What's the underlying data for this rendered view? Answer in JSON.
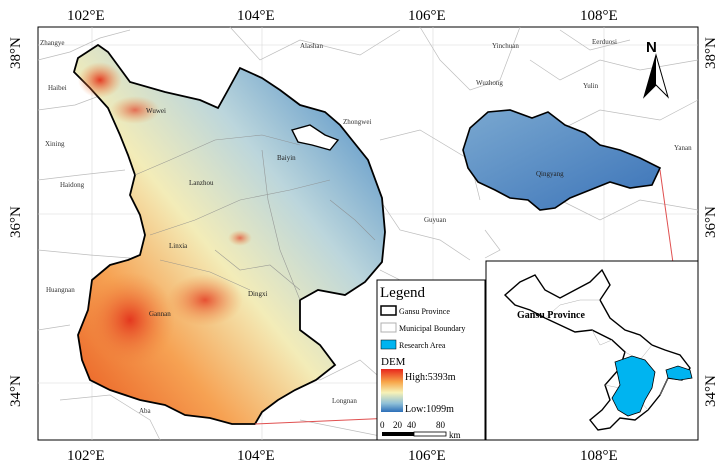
{
  "longitude_ticks": [
    "102°E",
    "104°E",
    "106°E",
    "108°E"
  ],
  "latitude_ticks": [
    "38°N",
    "36°N",
    "34°N"
  ],
  "north_label": "N",
  "cities_outside": [
    {
      "name": "Zhangye"
    },
    {
      "name": "Haibei"
    },
    {
      "name": "Xining"
    },
    {
      "name": "Haidong"
    },
    {
      "name": "Huangnan"
    },
    {
      "name": "Aba"
    },
    {
      "name": "Alashan"
    },
    {
      "name": "Yinchuan"
    },
    {
      "name": "Eerduosi"
    },
    {
      "name": "Wuzhong"
    },
    {
      "name": "Yulin"
    },
    {
      "name": "Zhongwei"
    },
    {
      "name": "Yanan"
    },
    {
      "name": "Guyuan"
    },
    {
      "name": "Longnan"
    }
  ],
  "cities_inside": [
    {
      "name": "Wuwei"
    },
    {
      "name": "Lanzhou"
    },
    {
      "name": "Baiyin"
    },
    {
      "name": "Linxia"
    },
    {
      "name": "Dingxi"
    },
    {
      "name": "Gannan"
    },
    {
      "name": "Qingyang"
    }
  ],
  "legend": {
    "title": "Legend",
    "items": [
      {
        "label": "Gansu Province",
        "swatch": "outline-black"
      },
      {
        "label": "Municipal Boundary",
        "swatch": "outline-gray"
      },
      {
        "label": "Research Area",
        "swatch": "fill-cyan",
        "color": "#00b4f0"
      }
    ],
    "dem": {
      "title": "DEM",
      "high": "High:5393m",
      "low": "Low:1099m",
      "high_color": "#e8261c",
      "mid_color": "#f6f2b8",
      "low_color": "#2c6fb8"
    }
  },
  "scale_bar": {
    "ticks": [
      "0",
      "20",
      "40",
      "80"
    ],
    "unit": "km"
  },
  "inset": {
    "label": "Gansu Province",
    "research_color": "#00b4f0"
  },
  "connector_color": "#e05050"
}
